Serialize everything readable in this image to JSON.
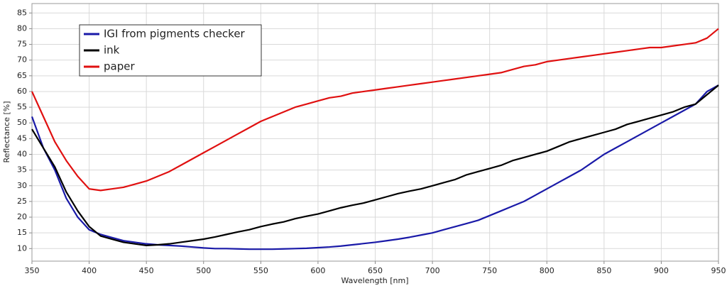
{
  "chart_data": {
    "type": "line",
    "x_label": "Wavelength [nm]",
    "y_label": "Reflectance [%]",
    "x": [
      350,
      360,
      370,
      380,
      390,
      400,
      410,
      420,
      430,
      440,
      450,
      460,
      470,
      480,
      490,
      500,
      510,
      520,
      530,
      540,
      550,
      560,
      570,
      580,
      590,
      600,
      610,
      620,
      630,
      640,
      650,
      660,
      670,
      680,
      690,
      700,
      710,
      720,
      730,
      740,
      750,
      760,
      770,
      780,
      790,
      800,
      810,
      820,
      830,
      840,
      850,
      860,
      870,
      880,
      890,
      900,
      910,
      920,
      930,
      940,
      950
    ],
    "series": [
      {
        "name": "IGI from pigments checker",
        "color": "#1a1aa8",
        "values": [
          52,
          42,
          35,
          26,
          20,
          16,
          14.5,
          13.5,
          12.5,
          12,
          11.5,
          11.2,
          11,
          10.8,
          10.5,
          10.2,
          10,
          10,
          9.9,
          9.8,
          9.8,
          9.8,
          9.9,
          10,
          10.1,
          10.3,
          10.5,
          10.8,
          11.2,
          11.6,
          12,
          12.5,
          13,
          13.6,
          14.3,
          15,
          16,
          17,
          18,
          19,
          20.5,
          22,
          23.5,
          25,
          27,
          29,
          31,
          33,
          35,
          37.5,
          40,
          42,
          44,
          46,
          48,
          50,
          52,
          54,
          56,
          60,
          62
        ]
      },
      {
        "name": "ink",
        "color": "#000000",
        "values": [
          48,
          42,
          36,
          28,
          22,
          17,
          14,
          13,
          12,
          11.5,
          11,
          11.2,
          11.5,
          12,
          12.5,
          13,
          13.7,
          14.5,
          15.3,
          16,
          17,
          17.8,
          18.5,
          19.5,
          20.3,
          21,
          22,
          23,
          23.8,
          24.5,
          25.5,
          26.5,
          27.5,
          28.3,
          29,
          30,
          31,
          32,
          33.5,
          34.5,
          35.5,
          36.5,
          38,
          39,
          40,
          41,
          42.5,
          44,
          45,
          46,
          47,
          48,
          49.5,
          50.5,
          51.5,
          52.5,
          53.5,
          55,
          56,
          59,
          62
        ]
      },
      {
        "name": "paper",
        "color": "#e01010",
        "values": [
          60,
          52,
          44,
          38,
          33,
          29,
          28.5,
          29,
          29.5,
          30.5,
          31.5,
          33,
          34.5,
          36.5,
          38.5,
          40.5,
          42.5,
          44.5,
          46.5,
          48.5,
          50.5,
          52,
          53.5,
          55,
          56,
          57,
          58,
          58.5,
          59.5,
          60,
          60.5,
          61,
          61.5,
          62,
          62.5,
          63,
          63.5,
          64,
          64.5,
          65,
          65.5,
          66,
          67,
          68,
          68.5,
          69.5,
          70,
          70.5,
          71,
          71.5,
          72,
          72.5,
          73,
          73.5,
          74,
          74,
          74.5,
          75,
          75.5,
          77,
          80
        ]
      }
    ],
    "xlim": [
      350,
      950
    ],
    "ylim": [
      6,
      88
    ],
    "xticks": [
      350,
      400,
      450,
      500,
      550,
      600,
      650,
      700,
      750,
      800,
      850,
      900,
      950
    ],
    "yticks": [
      10,
      15,
      20,
      25,
      30,
      35,
      40,
      45,
      50,
      55,
      60,
      65,
      70,
      75,
      80,
      85
    ],
    "grid": true,
    "legend": "top-left"
  }
}
